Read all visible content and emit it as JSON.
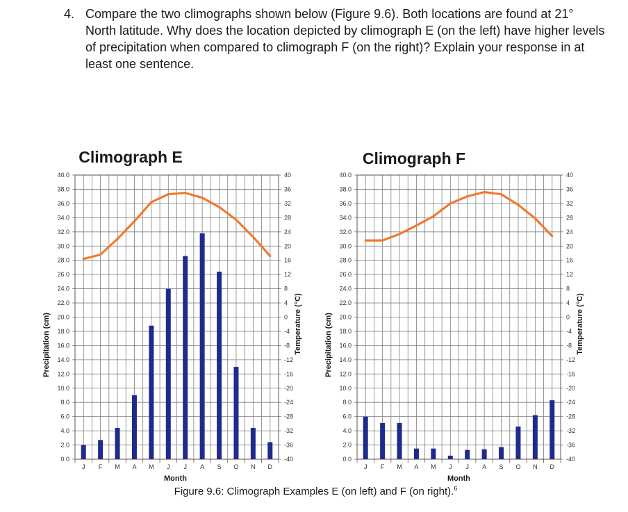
{
  "question": {
    "number": "4.",
    "text": "Compare the two climographs shown below (Figure 9.6). Both locations are found at 21° North latitude. Why does the location depicted by climograph E (on the left) have higher levels of precipitation when compared to climograph F (on the right)? Explain your response in at least one sentence."
  },
  "caption": {
    "text": "Figure 9.6: Climograph Examples E (on left) and F (on right).",
    "footnote": "6"
  },
  "colors": {
    "precip": "#1f2b8c",
    "temp": "#f07a30",
    "grid": "#7f7f7f"
  },
  "chart_data": [
    {
      "type": "bar+line",
      "title": "Climograph E",
      "xlabel": "Month",
      "ylabel": "Precipitation (cm)",
      "y2label": "Temperature (°C)",
      "categories": [
        "J",
        "F",
        "M",
        "A",
        "M",
        "J",
        "J",
        "A",
        "S",
        "O",
        "N",
        "D"
      ],
      "ylim": [
        0,
        40
      ],
      "y2lim": [
        -40,
        40
      ],
      "yticks": [
        "0.0",
        "2.0",
        "4.0",
        "6.0",
        "8.0",
        "10.0",
        "12.0",
        "14.0",
        "16.0",
        "18.0",
        "20.0",
        "22.0",
        "24.0",
        "26.0",
        "28.0",
        "30.0",
        "32.0",
        "34.0",
        "36.0",
        "38.0",
        "40.0"
      ],
      "y2ticks": [
        "-40",
        "-36",
        "-32",
        "-28",
        "-24",
        "-20",
        "-16",
        "-12",
        "-8",
        "-4",
        "0",
        "4",
        "8",
        "12",
        "16",
        "20",
        "24",
        "28",
        "32",
        "36",
        "40"
      ],
      "precip_cm": [
        2.0,
        2.7,
        4.4,
        9.0,
        18.8,
        24.0,
        28.6,
        31.8,
        26.4,
        13.0,
        4.4,
        2.4
      ],
      "temp_c": [
        16.4,
        17.6,
        22.0,
        27.0,
        32.4,
        34.6,
        35.0,
        33.6,
        31.0,
        27.4,
        22.6,
        17.2
      ],
      "grid": true
    },
    {
      "type": "bar+line",
      "title": "Climograph F",
      "xlabel": "Month",
      "ylabel": "Precipitation (cm)",
      "y2label": "Temperature (°C)",
      "categories": [
        "J",
        "F",
        "M",
        "A",
        "M",
        "J",
        "J",
        "A",
        "S",
        "O",
        "N",
        "D"
      ],
      "ylim": [
        0,
        40
      ],
      "y2lim": [
        -40,
        40
      ],
      "yticks": [
        "0.0",
        "2.0",
        "4.0",
        "6.0",
        "8.0",
        "10.0",
        "12.0",
        "14.0",
        "16.0",
        "18.0",
        "20.0",
        "22.0",
        "24.0",
        "26.0",
        "28.0",
        "30.0",
        "32.0",
        "34.0",
        "36.0",
        "38.0",
        "40.0"
      ],
      "y2ticks": [
        "-40",
        "-36",
        "-32",
        "-28",
        "-24",
        "-20",
        "-16",
        "-12",
        "-8",
        "-4",
        "0",
        "4",
        "8",
        "12",
        "16",
        "20",
        "24",
        "28",
        "32",
        "36",
        "40"
      ],
      "precip_cm": [
        6.0,
        5.1,
        5.1,
        1.5,
        1.5,
        0.5,
        1.3,
        1.4,
        1.7,
        4.6,
        6.2,
        8.3
      ],
      "temp_c": [
        21.6,
        21.6,
        23.4,
        25.8,
        28.4,
        32.0,
        34.0,
        35.2,
        34.6,
        31.6,
        27.8,
        22.8
      ],
      "grid": true
    }
  ]
}
